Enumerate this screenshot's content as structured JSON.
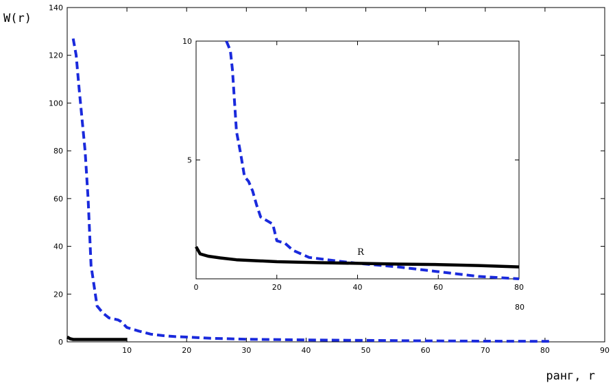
{
  "chart_data": [
    {
      "type": "line",
      "ylabel": "W(r)",
      "xlabel": "ранг, r",
      "xlim": [
        0,
        90
      ],
      "ylim": [
        0,
        140
      ],
      "xticks": [
        10,
        20,
        30,
        40,
        50,
        60,
        70,
        80,
        90
      ],
      "yticks": [
        0,
        20,
        40,
        60,
        80,
        100,
        120,
        140
      ],
      "series": [
        {
          "style": "dashed",
          "color": "#1a2adc",
          "points": [
            [
              1,
              127
            ],
            [
              1.5,
              120
            ],
            [
              2,
              106
            ],
            [
              3,
              80
            ],
            [
              3.5,
              60
            ],
            [
              4,
              32
            ],
            [
              5,
              15
            ],
            [
              6,
              12
            ],
            [
              7,
              10
            ],
            [
              8,
              9.5
            ],
            [
              8.5,
              9.2
            ],
            [
              9,
              8.5
            ],
            [
              10,
              6
            ],
            [
              12,
              4.5
            ],
            [
              14,
              3.2
            ],
            [
              16,
              2.6
            ],
            [
              18,
              2.2
            ],
            [
              20,
              2
            ],
            [
              24,
              1.5
            ],
            [
              30,
              1.1
            ],
            [
              40,
              0.8
            ],
            [
              50,
              0.6
            ],
            [
              60,
              0.4
            ],
            [
              70,
              0.3
            ],
            [
              81,
              0.2
            ]
          ]
        },
        {
          "style": "solid",
          "color": "#000000",
          "points": [
            [
              0,
              2
            ],
            [
              0.5,
              1.3
            ],
            [
              1,
              1
            ],
            [
              5,
              1
            ],
            [
              10,
              1
            ]
          ]
        }
      ]
    },
    {
      "type": "line",
      "annotation": "R",
      "extra_label": "80",
      "xlim": [
        0,
        80
      ],
      "ylim": [
        0,
        10
      ],
      "xticks": [
        0,
        20,
        40,
        60,
        80
      ],
      "yticks": [
        5,
        10
      ],
      "series": [
        {
          "style": "dashed",
          "color": "#1a2adc",
          "points": [
            [
              7.5,
              10
            ],
            [
              8.5,
              9.6
            ],
            [
              9,
              8.8
            ],
            [
              10,
              6.2
            ],
            [
              11,
              5.3
            ],
            [
              12,
              4.3
            ],
            [
              13,
              4.1
            ],
            [
              14,
              3.7
            ],
            [
              15,
              3.1
            ],
            [
              16,
              2.6
            ],
            [
              18,
              2.4
            ],
            [
              19,
              2.3
            ],
            [
              20,
              1.6
            ],
            [
              22,
              1.5
            ],
            [
              24,
              1.2
            ],
            [
              28,
              0.9
            ],
            [
              35,
              0.75
            ],
            [
              40,
              0.65
            ],
            [
              50,
              0.5
            ],
            [
              60,
              0.3
            ],
            [
              70,
              0.1
            ],
            [
              80,
              0
            ]
          ]
        },
        {
          "style": "solid",
          "color": "#000000",
          "points": [
            [
              0,
              1.35
            ],
            [
              1,
              1.05
            ],
            [
              3,
              0.95
            ],
            [
              6,
              0.88
            ],
            [
              10,
              0.8
            ],
            [
              20,
              0.72
            ],
            [
              30,
              0.68
            ],
            [
              40,
              0.65
            ],
            [
              50,
              0.62
            ],
            [
              60,
              0.6
            ],
            [
              70,
              0.56
            ],
            [
              80,
              0.5
            ]
          ]
        }
      ]
    }
  ]
}
